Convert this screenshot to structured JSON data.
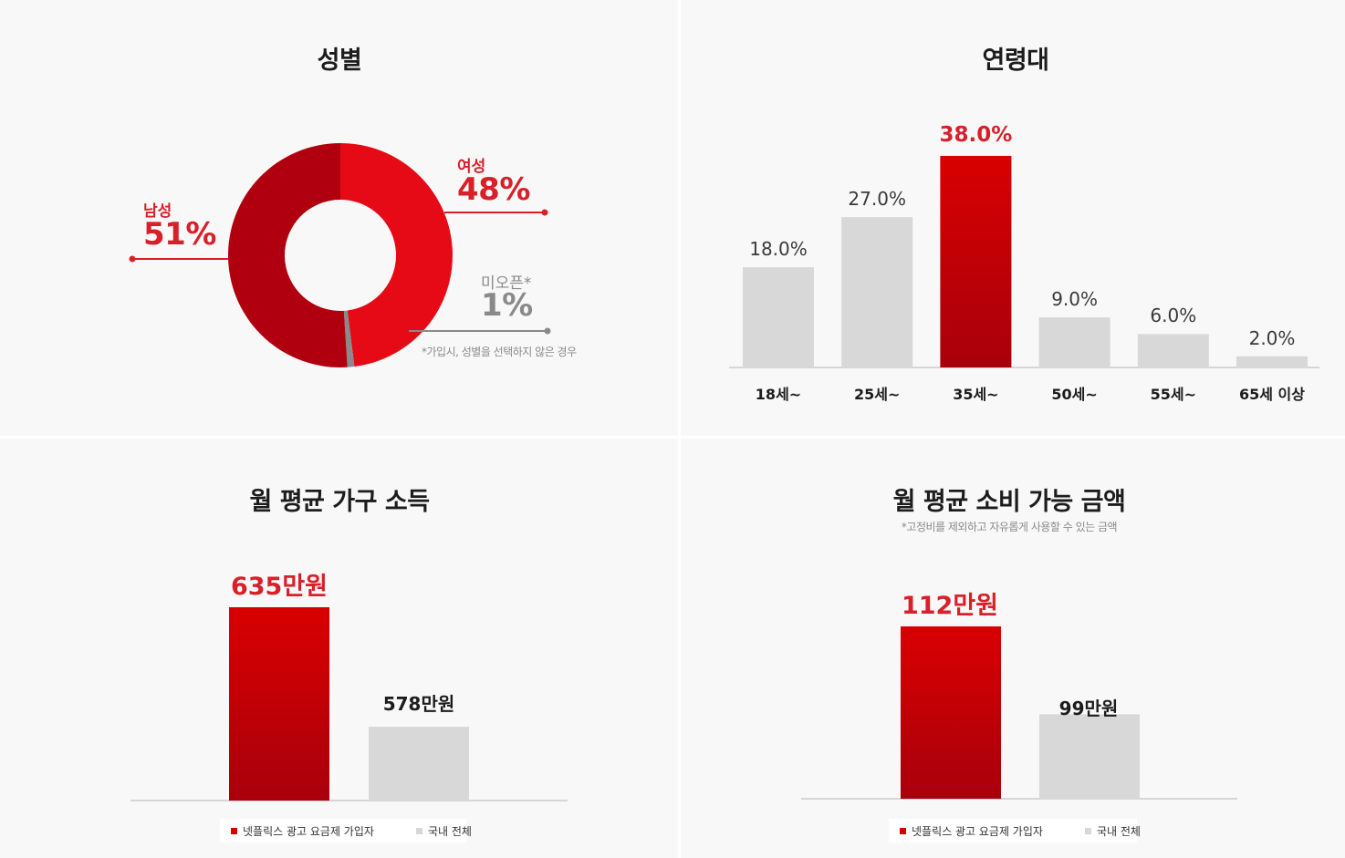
{
  "colors": {
    "red": "#d40000",
    "dark_red": "#b0000f",
    "light_gray": "#d8d8d8",
    "gray": "#8a8a8a",
    "text_red": "#d8202a"
  },
  "chart_data": [
    {
      "type": "pie",
      "title": "성별",
      "labels": [
        "남성",
        "여성",
        "미오픈*"
      ],
      "values": [
        51,
        48,
        1
      ],
      "value_labels": [
        "51%",
        "48%",
        "1%"
      ],
      "note": "*가입시, 성별을 선택하지 않은 경우"
    },
    {
      "type": "bar",
      "title": "연령대",
      "categories": [
        "18세~",
        "25세~",
        "35세~",
        "50세~",
        "55세~",
        "65세 이상"
      ],
      "values": [
        18.0,
        27.0,
        38.0,
        9.0,
        6.0,
        2.0
      ],
      "value_labels": [
        "18.0%",
        "27.0%",
        "38.0%",
        "9.0%",
        "6.0%",
        "2.0%"
      ],
      "highlight_index": 2,
      "ylim": [
        0,
        40
      ]
    },
    {
      "type": "bar",
      "title": "월 평균 가구 소득",
      "categories": [
        "넷플릭스 광고 요금제 가입자",
        "국내 전체"
      ],
      "values": [
        635,
        578
      ],
      "value_labels": [
        "635만원",
        "578만원"
      ],
      "legend": [
        "넷플릭스 광고 요금제 가입자",
        "국내 전체"
      ],
      "legend_position": "bottom"
    },
    {
      "type": "bar",
      "title": "월 평균 소비 가능 금액",
      "subtitle": "*고정비를 제외하고 자유롭게 사용할 수 있는 금액",
      "categories": [
        "넷플릭스 광고 요금제 가입자",
        "국내 전체"
      ],
      "values": [
        112,
        99
      ],
      "value_labels": [
        "112만원",
        "99만원"
      ],
      "legend": [
        "넷플릭스 광고 요금제 가입자",
        "국내 전체"
      ],
      "legend_position": "bottom"
    }
  ]
}
